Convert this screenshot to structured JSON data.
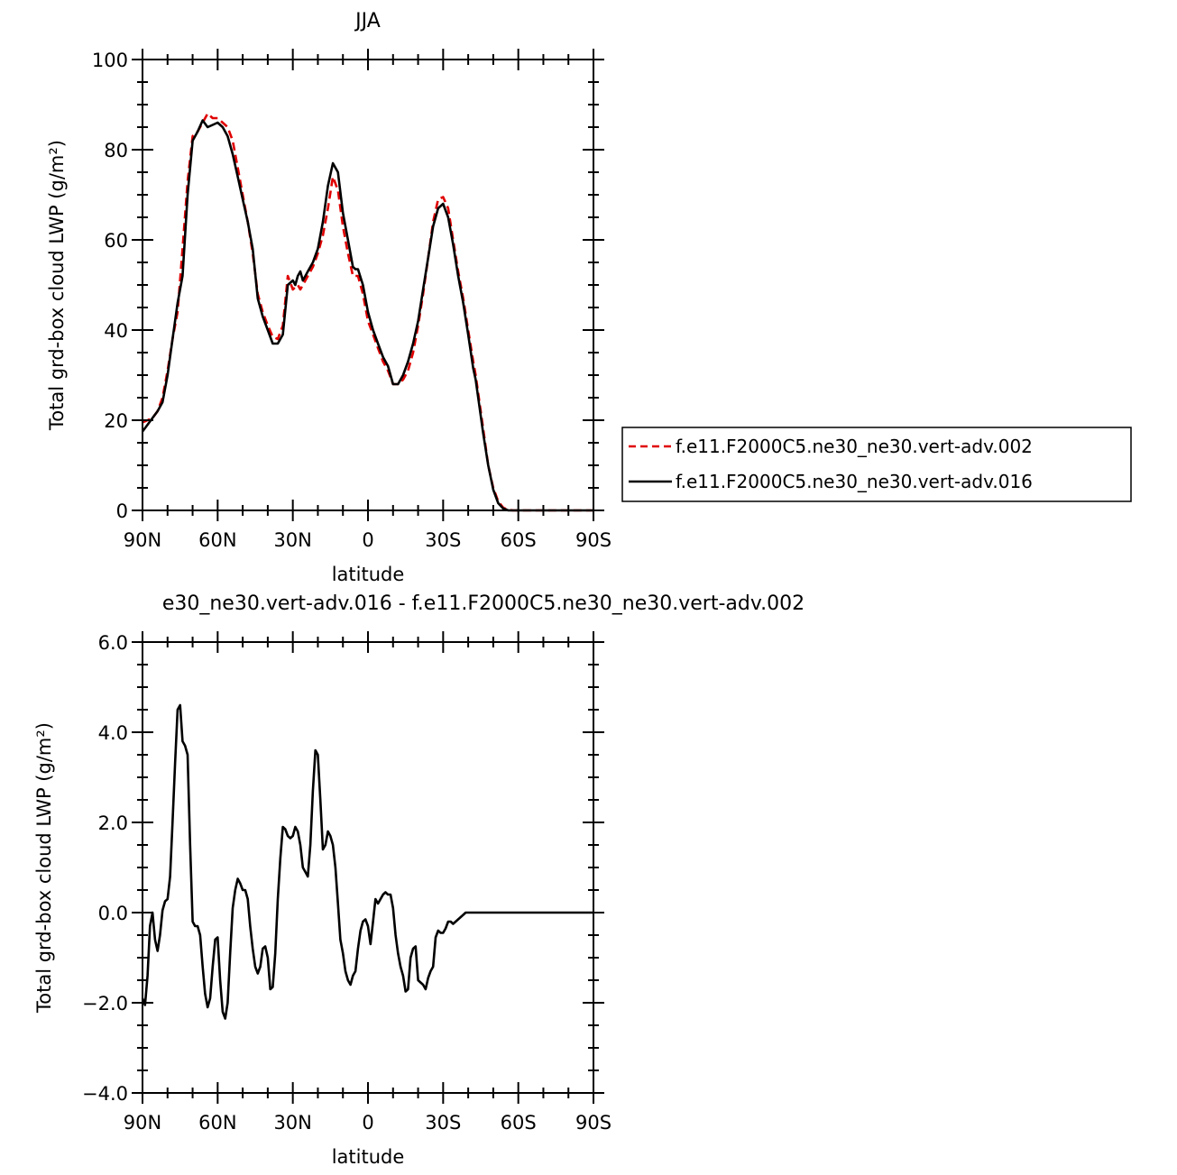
{
  "chart_data": [
    {
      "type": "line",
      "title": "JJA",
      "xlabel": "latitude",
      "ylabel": "Total grd-box cloud LWP (g/m²)",
      "x_range": [
        90,
        -90
      ],
      "x_ticks": [
        90,
        60,
        30,
        0,
        -30,
        -60,
        -90
      ],
      "x_tick_labels": [
        "90N",
        "60N",
        "30N",
        "0",
        "30S",
        "60S",
        "90S"
      ],
      "ylim": [
        0,
        100
      ],
      "y_ticks": [
        0,
        20,
        40,
        60,
        80,
        100
      ],
      "y_tick_labels": [
        "0",
        "20",
        "40",
        "60",
        "80",
        "100"
      ],
      "grid": false,
      "legend_position": "right",
      "series": [
        {
          "name": "f.e11.F2000C5.ne30_ne30.vert-adv.002",
          "color": "#e00000",
          "dash": "dashed",
          "x": [
            90,
            88,
            86,
            84,
            82,
            80,
            78,
            76,
            74,
            72,
            70,
            68,
            66,
            64,
            62,
            60,
            59,
            58,
            56,
            54,
            52,
            50,
            48,
            46,
            44,
            42,
            40,
            38,
            36,
            34,
            32,
            30,
            29,
            28,
            27,
            26,
            25,
            24,
            22,
            20,
            18,
            16,
            14,
            12,
            10,
            8,
            6,
            5,
            4,
            2,
            0,
            -2,
            -4,
            -6,
            -8,
            -10,
            -12,
            -14,
            -16,
            -18,
            -20,
            -22,
            -24,
            -26,
            -28,
            -30,
            -32,
            -34,
            -36,
            -38,
            -40,
            -42,
            -43,
            -44,
            -46,
            -48,
            -50,
            -52,
            -54,
            -56,
            -58,
            -60,
            -62,
            -64,
            -66,
            -68,
            -70,
            -72,
            -74,
            -76,
            -78,
            -80,
            -85,
            -90
          ],
          "values": [
            19.5,
            20,
            20.5,
            22,
            25,
            31,
            38,
            44,
            58,
            73,
            83,
            84,
            86,
            88,
            87,
            87,
            86.5,
            86,
            85,
            82,
            76,
            70,
            64,
            57,
            48,
            44,
            41,
            38.5,
            38,
            41,
            52,
            49,
            49.5,
            50,
            49,
            50,
            51,
            52,
            54,
            57,
            61,
            67,
            74,
            71,
            63,
            57,
            52,
            52,
            52,
            48,
            42,
            39,
            36,
            33,
            31,
            28,
            28,
            29,
            31,
            35,
            41,
            48,
            56,
            64,
            69,
            69.5,
            67,
            60,
            53,
            47,
            40,
            33,
            30,
            26,
            18,
            10,
            5,
            2,
            0.6,
            0.1,
            0,
            0,
            0,
            0,
            0,
            0,
            0,
            0,
            0,
            0,
            0,
            0,
            0,
            0
          ]
        },
        {
          "name": "f.e11.F2000C5.ne30_ne30.vert-adv.016",
          "color": "#000000",
          "dash": "solid",
          "x": [
            90,
            88,
            86,
            84,
            82,
            80,
            78,
            76,
            74,
            72,
            70,
            68,
            66,
            64,
            62,
            60,
            59,
            58,
            56,
            54,
            52,
            50,
            48,
            46,
            44,
            42,
            40,
            38,
            36,
            34,
            32,
            30,
            29,
            28,
            27,
            26,
            25,
            24,
            22,
            20,
            18,
            16,
            14,
            12,
            10,
            8,
            6,
            5,
            4,
            2,
            0,
            -2,
            -4,
            -6,
            -8,
            -10,
            -12,
            -14,
            -16,
            -18,
            -20,
            -22,
            -24,
            -26,
            -28,
            -30,
            -32,
            -34,
            -36,
            -38,
            -40,
            -42,
            -43,
            -44,
            -46,
            -48,
            -50,
            -52,
            -54,
            -56,
            -58,
            -60,
            -62,
            -64,
            -66,
            -68,
            -70,
            -72,
            -74,
            -76,
            -78,
            -80,
            -85,
            -90
          ],
          "values": [
            17.5,
            19,
            20.5,
            22,
            24,
            30,
            38,
            46,
            52,
            70,
            82,
            84,
            86.5,
            85,
            85.5,
            86,
            85.5,
            85,
            83,
            79,
            74,
            69,
            64,
            58,
            47,
            43,
            40,
            37,
            37,
            39,
            50,
            51,
            50,
            52,
            53,
            51,
            52,
            53,
            55,
            58,
            64,
            72,
            77,
            75,
            66,
            60,
            54,
            53.5,
            53.5,
            50,
            44,
            40,
            37,
            34,
            32,
            28,
            28,
            30,
            33,
            37,
            42,
            49,
            56,
            63,
            67,
            68,
            65,
            59,
            52,
            46,
            39,
            31.5,
            29,
            25,
            17,
            10,
            4.6,
            1.6,
            0.4,
            0,
            0,
            0,
            0,
            0,
            0,
            0,
            0,
            0,
            0,
            0,
            0,
            0,
            0,
            0
          ]
        }
      ]
    },
    {
      "type": "line",
      "title": "e30_ne30.vert-adv.016 - f.e11.F2000C5.ne30_ne30.vert-adv.002",
      "xlabel": "latitude",
      "ylabel": "Total grd-box cloud LWP (g/m²)",
      "x_range": [
        90,
        -90
      ],
      "x_ticks": [
        90,
        60,
        30,
        0,
        -30,
        -60,
        -90
      ],
      "x_tick_labels": [
        "90N",
        "60N",
        "30N",
        "0",
        "30S",
        "60S",
        "90S"
      ],
      "ylim": [
        -4,
        6
      ],
      "y_ticks": [
        -4,
        -2,
        0,
        2,
        4,
        6
      ],
      "y_tick_labels": [
        "−4.0",
        "−2.0",
        "0.0",
        "2.0",
        "4.0",
        "6.0"
      ],
      "grid": false,
      "series": [
        {
          "color": "#000000",
          "dash": "solid",
          "x": [
            90,
            89,
            88,
            87,
            86,
            85,
            84,
            83,
            82,
            81,
            80,
            79,
            78,
            77,
            76,
            75,
            74,
            73,
            72,
            71,
            70,
            69,
            68,
            67,
            66,
            65,
            64,
            63,
            62,
            61,
            60,
            59,
            58,
            57,
            56,
            55,
            54,
            53,
            52,
            51,
            50,
            49,
            48,
            47,
            46,
            45,
            44,
            43,
            42,
            41,
            40,
            39,
            38,
            37,
            36,
            35,
            34,
            33,
            32,
            31,
            30,
            29,
            28,
            27,
            26,
            25,
            24,
            23,
            22,
            21,
            20,
            19,
            18,
            17,
            16,
            15,
            14,
            13,
            12,
            11,
            10,
            9,
            8,
            7,
            6,
            5,
            4,
            3,
            2,
            1,
            0,
            -1,
            -2,
            -3,
            -4,
            -5,
            -6,
            -7,
            -8,
            -9,
            -10,
            -11,
            -12,
            -13,
            -14,
            -15,
            -16,
            -17,
            -18,
            -19,
            -20,
            -21,
            -22,
            -23,
            -24,
            -25,
            -26,
            -27,
            -28,
            -29,
            -30,
            -31,
            -32,
            -33,
            -34,
            -35,
            -36,
            -37,
            -38,
            -39,
            -40,
            -41,
            -42,
            -43,
            -44,
            -45,
            -46,
            -47,
            -48,
            -49,
            -50,
            -51,
            -52,
            -53,
            -54,
            -55,
            -56,
            -57,
            -58,
            -59,
            -60,
            -61,
            -62,
            -63,
            -64,
            -65,
            -66,
            -67,
            -68,
            -69,
            -70,
            -71,
            -72,
            -73,
            -74,
            -75,
            -76,
            -77,
            -78,
            -80,
            -85,
            -90
          ],
          "values": [
            -1.9,
            -2.05,
            -1.4,
            -0.3,
            0.0,
            -0.6,
            -0.85,
            -0.5,
            0.05,
            0.25,
            0.3,
            0.8,
            2.0,
            3.3,
            4.5,
            4.6,
            3.8,
            3.7,
            3.5,
            1.5,
            -0.2,
            -0.3,
            -0.3,
            -0.5,
            -1.2,
            -1.8,
            -2.1,
            -1.9,
            -1.2,
            -0.6,
            -0.55,
            -1.5,
            -2.2,
            -2.35,
            -2.0,
            -0.9,
            0.1,
            0.5,
            0.75,
            0.65,
            0.5,
            0.5,
            0.3,
            -0.3,
            -0.8,
            -1.2,
            -1.35,
            -1.2,
            -0.8,
            -0.75,
            -1.0,
            -1.7,
            -1.65,
            -0.9,
            0.3,
            1.2,
            1.9,
            1.85,
            1.7,
            1.65,
            1.7,
            1.9,
            1.8,
            1.5,
            1.0,
            0.9,
            0.8,
            1.5,
            2.7,
            3.6,
            3.5,
            2.5,
            1.4,
            1.5,
            1.8,
            1.7,
            1.5,
            1.0,
            0.2,
            -0.6,
            -0.9,
            -1.3,
            -1.5,
            -1.6,
            -1.4,
            -1.3,
            -0.8,
            -0.4,
            -0.2,
            -0.15,
            -0.3,
            -0.7,
            -0.2,
            0.3,
            0.2,
            0.3,
            0.4,
            0.45,
            0.4,
            0.4,
            0.1,
            -0.5,
            -0.9,
            -1.2,
            -1.4,
            -1.75,
            -1.7,
            -1.0,
            -0.8,
            -0.75,
            -1.5,
            -1.55,
            -1.6,
            -1.7,
            -1.45,
            -1.3,
            -1.2,
            -0.55,
            -0.4,
            -0.45,
            -0.45,
            -0.35,
            -0.2,
            -0.2,
            -0.25,
            -0.2,
            -0.15,
            -0.1,
            -0.05,
            0.0,
            0.0,
            0.0,
            0.0,
            0.0,
            0.0,
            0.0,
            0.0,
            0.0,
            0.0,
            0.0,
            0.0,
            0.0,
            0.0,
            0.0,
            0.0,
            0.0,
            0.0,
            0.0,
            0.0,
            0.0,
            0.0,
            0.0,
            0.0,
            0.0,
            0.0,
            0.0,
            0.0,
            0.0,
            0.0,
            0.0,
            0.0,
            0.0,
            0.0,
            0.0,
            0.0,
            0.0,
            0.0,
            0.0,
            0.0,
            0.0,
            0.0,
            0.0
          ]
        }
      ]
    }
  ]
}
